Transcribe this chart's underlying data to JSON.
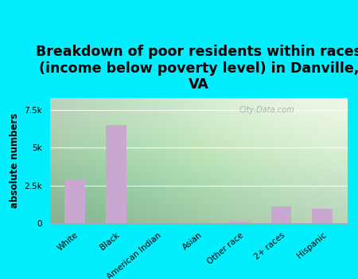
{
  "title": "Breakdown of poor residents within races\n(income below poverty level) in Danville,\nVA",
  "ylabel": "absolute numbers",
  "categories": [
    "White",
    "Black",
    "American Indian",
    "Asian",
    "Other race",
    "2+ races",
    "Hispanic"
  ],
  "values": [
    2900,
    6500,
    20,
    50,
    100,
    1100,
    950
  ],
  "bar_color": "#c8a8d0",
  "background_color": "#00eeff",
  "yticks": [
    0,
    2500,
    5000,
    7500
  ],
  "ytick_labels": [
    "0",
    "2.5k",
    "5k",
    "7.5k"
  ],
  "ylim": [
    0,
    8300
  ],
  "title_fontsize": 12.5,
  "axis_label_fontsize": 8.5,
  "tick_label_fontsize": 7.5,
  "watermark": "City-Data.com"
}
